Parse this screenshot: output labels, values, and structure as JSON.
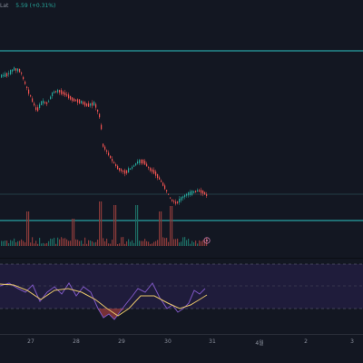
{
  "header": {
    "price_change": "5.59 (+0.31%)",
    "prefix": "Lat"
  },
  "xaxis": {
    "labels": [
      "27",
      "28",
      "29",
      "30",
      "31",
      "4월",
      "2",
      "3"
    ]
  },
  "volume": {
    "marker_icon": "settings-icon"
  },
  "colors": {
    "background": "#131722",
    "up": "#26a69a",
    "down": "#ef5350",
    "level_line": "#2ec4c4",
    "rsi_line": "#7e57c2",
    "rsi_signal": "#e8c66a",
    "rsi_band": "#1f1c3b"
  }
}
